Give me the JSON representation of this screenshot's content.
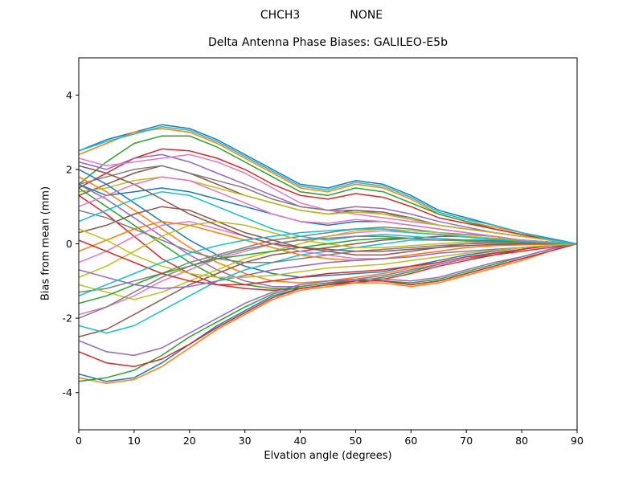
{
  "header": {
    "left_title": "CHCH3",
    "right_title": "NONE"
  },
  "chart_data": {
    "type": "line",
    "title": "Delta Antenna Phase Biases: GALILEO-E5b",
    "xlabel": "Elvation angle (degrees)",
    "ylabel": "Bias from mean (mm)",
    "xlim": [
      0,
      90
    ],
    "ylim": [
      -5,
      5
    ],
    "xticks": [
      0,
      10,
      20,
      30,
      40,
      50,
      60,
      70,
      80,
      90
    ],
    "yticks": [
      -4,
      -2,
      0,
      2,
      4
    ],
    "grid": false,
    "legend": "none",
    "palette": [
      "#1f77b4",
      "#ff7f0e",
      "#2ca02c",
      "#d62728",
      "#9467bd",
      "#8c564b",
      "#e377c2",
      "#7f7f7f",
      "#bcbd22",
      "#17becf"
    ],
    "x": [
      0,
      5,
      10,
      15,
      20,
      25,
      30,
      35,
      40,
      45,
      50,
      55,
      60,
      65,
      70,
      75,
      80,
      85,
      90
    ],
    "series": [
      {
        "values": [
          2.5,
          2.8,
          3.0,
          3.2,
          3.1,
          2.8,
          2.4,
          2.0,
          1.6,
          1.5,
          1.7,
          1.6,
          1.3,
          0.9,
          0.7,
          0.5,
          0.3,
          0.15,
          0
        ]
      },
      {
        "values": [
          2.4,
          2.7,
          3.0,
          3.1,
          3.0,
          2.7,
          2.3,
          1.9,
          1.5,
          1.4,
          1.6,
          1.5,
          1.2,
          0.8,
          0.6,
          0.45,
          0.3,
          0.1,
          0
        ]
      },
      {
        "values": [
          1.6,
          2.2,
          2.7,
          2.9,
          2.9,
          2.6,
          2.2,
          1.8,
          1.4,
          1.3,
          1.5,
          1.4,
          1.1,
          0.8,
          0.6,
          0.4,
          0.25,
          0.1,
          0
        ]
      },
      {
        "values": [
          1.5,
          1.9,
          2.3,
          2.55,
          2.5,
          2.3,
          2.0,
          1.6,
          1.3,
          1.2,
          1.35,
          1.25,
          1.0,
          0.7,
          0.55,
          0.4,
          0.25,
          0.1,
          0
        ]
      },
      {
        "values": [
          2.2,
          2.0,
          2.3,
          2.4,
          2.2,
          1.9,
          1.6,
          1.3,
          1.0,
          0.9,
          1.0,
          0.95,
          0.8,
          0.6,
          0.45,
          0.3,
          0.2,
          0.1,
          0
        ]
      },
      {
        "values": [
          1.3,
          1.6,
          1.9,
          2.1,
          1.9,
          1.6,
          1.3,
          1.1,
          0.9,
          0.8,
          0.9,
          0.85,
          0.7,
          0.5,
          0.4,
          0.3,
          0.2,
          0.1,
          0
        ]
      },
      {
        "values": [
          2.3,
          2.1,
          2.2,
          2.3,
          2.4,
          2.2,
          1.9,
          1.5,
          1.1,
          0.9,
          0.8,
          0.7,
          0.6,
          0.5,
          0.4,
          0.3,
          0.2,
          0.1,
          0
        ]
      },
      {
        "values": [
          1.6,
          1.8,
          2.0,
          2.1,
          1.9,
          1.7,
          1.5,
          1.2,
          1.0,
          0.9,
          0.9,
          0.8,
          0.7,
          0.5,
          0.4,
          0.3,
          0.2,
          0.1,
          0
        ]
      },
      {
        "values": [
          1.4,
          1.5,
          1.7,
          1.8,
          1.7,
          1.5,
          1.3,
          1.1,
          0.9,
          0.8,
          0.85,
          0.8,
          0.65,
          0.5,
          0.4,
          0.3,
          0.2,
          0.1,
          0
        ]
      },
      {
        "values": [
          2.5,
          2.75,
          2.95,
          3.15,
          3.05,
          2.75,
          2.35,
          1.95,
          1.55,
          1.45,
          1.65,
          1.55,
          1.25,
          0.85,
          0.65,
          0.5,
          0.3,
          0.12,
          0
        ]
      },
      {
        "values": [
          2.0,
          1.6,
          1.1,
          0.6,
          0.1,
          -0.3,
          -0.6,
          -0.8,
          -0.9,
          -0.85,
          -0.8,
          -0.75,
          -0.6,
          -0.45,
          -0.3,
          -0.2,
          -0.1,
          -0.05,
          0
        ]
      },
      {
        "values": [
          1.8,
          1.4,
          0.9,
          0.4,
          -0.1,
          -0.5,
          -0.8,
          -1.0,
          -1.05,
          -1.0,
          -0.9,
          -0.8,
          -0.65,
          -0.5,
          -0.35,
          -0.25,
          -0.15,
          -0.05,
          0
        ]
      },
      {
        "values": [
          1.5,
          1.0,
          0.5,
          0.0,
          -0.5,
          -0.9,
          -1.1,
          -1.2,
          -1.2,
          -1.1,
          -1.0,
          -0.9,
          -0.75,
          -0.55,
          -0.4,
          -0.3,
          -0.15,
          -0.05,
          0
        ]
      },
      {
        "values": [
          1.3,
          0.8,
          0.2,
          -0.4,
          -0.8,
          -1.1,
          -1.2,
          -1.25,
          -1.2,
          -1.1,
          -1.05,
          -0.95,
          -0.8,
          -0.6,
          -0.45,
          -0.3,
          -0.2,
          -0.1,
          0
        ]
      },
      {
        "values": [
          1.6,
          1.2,
          0.7,
          0.2,
          -0.3,
          -0.7,
          -1.0,
          -1.15,
          -1.15,
          -1.05,
          -0.95,
          -0.85,
          -0.7,
          -0.55,
          -0.4,
          -0.25,
          -0.15,
          -0.05,
          0
        ]
      },
      {
        "values": [
          -2.5,
          -2.3,
          -1.9,
          -1.5,
          -1.1,
          -0.8,
          -0.5,
          -0.3,
          -0.2,
          -0.1,
          0.0,
          0.1,
          0.15,
          0.2,
          0.2,
          0.15,
          0.1,
          0.05,
          0
        ]
      },
      {
        "values": [
          -1.9,
          -1.7,
          -1.4,
          -1.0,
          -0.7,
          -0.4,
          -0.2,
          0.0,
          0.1,
          0.2,
          0.3,
          0.35,
          0.3,
          0.25,
          0.2,
          0.15,
          0.1,
          0.05,
          0
        ]
      },
      {
        "values": [
          -1.3,
          -1.2,
          -1.0,
          -0.8,
          -0.5,
          -0.3,
          -0.1,
          0.1,
          0.2,
          0.3,
          0.4,
          0.45,
          0.4,
          0.3,
          0.25,
          0.2,
          0.1,
          0.05,
          0
        ]
      },
      {
        "values": [
          -1.1,
          -1.3,
          -1.5,
          -1.3,
          -1.0,
          -0.7,
          -0.4,
          -0.2,
          0.0,
          0.2,
          0.35,
          0.4,
          0.35,
          0.3,
          0.2,
          0.15,
          0.1,
          0.05,
          0
        ]
      },
      {
        "values": [
          -2.2,
          -2.4,
          -2.2,
          -1.8,
          -1.4,
          -1.0,
          -0.7,
          -0.5,
          -0.3,
          -0.2,
          -0.1,
          0.0,
          0.1,
          0.1,
          0.1,
          0.1,
          0.05,
          0.02,
          0
        ]
      },
      {
        "values": [
          -3.5,
          -3.7,
          -3.6,
          -3.2,
          -2.7,
          -2.2,
          -1.8,
          -1.4,
          -1.2,
          -1.1,
          -1.0,
          -1.0,
          -1.1,
          -1.0,
          -0.8,
          -0.6,
          -0.4,
          -0.2,
          0
        ]
      },
      {
        "values": [
          -3.6,
          -3.75,
          -3.65,
          -3.3,
          -2.8,
          -2.3,
          -1.9,
          -1.5,
          -1.25,
          -1.15,
          -1.05,
          -1.05,
          -1.15,
          -1.05,
          -0.85,
          -0.65,
          -0.45,
          -0.2,
          0
        ]
      },
      {
        "values": [
          -3.7,
          -3.6,
          -3.4,
          -3.0,
          -2.5,
          -2.1,
          -1.7,
          -1.35,
          -1.15,
          -1.05,
          -1.0,
          -1.0,
          -1.05,
          -0.95,
          -0.75,
          -0.55,
          -0.35,
          -0.15,
          0
        ]
      },
      {
        "values": [
          -2.9,
          -3.2,
          -3.3,
          -3.1,
          -2.7,
          -2.25,
          -1.85,
          -1.45,
          -1.2,
          -1.1,
          -1.0,
          -1.0,
          -1.1,
          -1.0,
          -0.8,
          -0.6,
          -0.4,
          -0.2,
          0
        ]
      },
      {
        "values": [
          -2.6,
          -2.9,
          -3.0,
          -2.8,
          -2.4,
          -2.0,
          -1.6,
          -1.3,
          -1.1,
          -1.0,
          -0.95,
          -0.95,
          -1.0,
          -0.9,
          -0.7,
          -0.5,
          -0.35,
          -0.15,
          0
        ]
      },
      {
        "values": [
          0.3,
          0.5,
          0.8,
          1.0,
          0.9,
          0.6,
          0.3,
          0.1,
          -0.1,
          -0.2,
          -0.3,
          -0.3,
          -0.2,
          -0.1,
          0.0,
          0.05,
          0.05,
          0.02,
          0
        ]
      },
      {
        "values": [
          -0.5,
          -0.2,
          0.2,
          0.5,
          0.6,
          0.4,
          0.2,
          0.0,
          -0.2,
          -0.3,
          -0.4,
          -0.4,
          -0.3,
          -0.2,
          -0.1,
          -0.05,
          -0.02,
          -0.01,
          0
        ]
      },
      {
        "values": [
          0.9,
          0.7,
          0.4,
          0.1,
          -0.2,
          -0.4,
          -0.5,
          -0.5,
          -0.4,
          -0.3,
          -0.2,
          -0.15,
          -0.1,
          -0.05,
          0.0,
          0.02,
          0.02,
          0.01,
          0
        ]
      },
      {
        "values": [
          -0.9,
          -0.6,
          -0.2,
          0.2,
          0.5,
          0.6,
          0.5,
          0.3,
          0.1,
          0.0,
          -0.1,
          -0.1,
          -0.05,
          0.0,
          0.05,
          0.05,
          0.03,
          0.01,
          0
        ]
      },
      {
        "values": [
          0.6,
          0.9,
          1.2,
          1.4,
          1.3,
          1.0,
          0.7,
          0.4,
          0.2,
          0.1,
          0.2,
          0.25,
          0.2,
          0.15,
          0.1,
          0.08,
          0.05,
          0.02,
          0
        ]
      },
      {
        "values": [
          1.6,
          1.3,
          1.4,
          1.5,
          1.4,
          1.2,
          1.0,
          0.8,
          0.6,
          0.5,
          0.6,
          0.6,
          0.5,
          0.4,
          0.3,
          0.2,
          0.1,
          0.05,
          0
        ]
      },
      {
        "values": [
          -0.2,
          0.1,
          0.4,
          0.6,
          0.5,
          0.3,
          0.1,
          -0.1,
          -0.3,
          -0.4,
          -0.45,
          -0.4,
          -0.3,
          -0.2,
          -0.1,
          -0.05,
          -0.03,
          -0.01,
          0
        ]
      },
      {
        "values": [
          -1.6,
          -1.4,
          -1.1,
          -0.8,
          -0.6,
          -0.4,
          -0.3,
          -0.2,
          -0.1,
          0.0,
          0.1,
          0.15,
          0.15,
          0.1,
          0.1,
          0.08,
          0.05,
          0.02,
          0
        ]
      },
      {
        "values": [
          0.1,
          -0.2,
          -0.5,
          -0.8,
          -1.0,
          -1.1,
          -1.1,
          -1.0,
          -0.9,
          -0.8,
          -0.75,
          -0.7,
          -0.6,
          -0.5,
          -0.35,
          -0.25,
          -0.15,
          -0.05,
          0
        ]
      },
      {
        "values": [
          -0.7,
          -0.9,
          -1.1,
          -1.2,
          -1.15,
          -1.0,
          -0.85,
          -0.7,
          -0.6,
          -0.5,
          -0.45,
          -0.4,
          -0.35,
          -0.25,
          -0.2,
          -0.15,
          -0.1,
          -0.05,
          0
        ]
      },
      {
        "values": [
          2.1,
          1.9,
          1.6,
          1.2,
          0.8,
          0.5,
          0.2,
          0.0,
          -0.1,
          -0.15,
          -0.2,
          -0.2,
          -0.15,
          -0.1,
          -0.05,
          -0.02,
          0.0,
          0.0,
          0
        ]
      },
      {
        "values": [
          1.0,
          1.3,
          1.6,
          1.8,
          1.7,
          1.4,
          1.1,
          0.8,
          0.6,
          0.55,
          0.65,
          0.6,
          0.5,
          0.4,
          0.3,
          0.2,
          0.1,
          0.05,
          0
        ]
      },
      {
        "values": [
          -2.0,
          -1.7,
          -1.3,
          -0.9,
          -0.6,
          -0.35,
          -0.15,
          0.0,
          0.1,
          0.15,
          0.2,
          0.2,
          0.15,
          0.1,
          0.08,
          0.05,
          0.03,
          0.01,
          0
        ]
      },
      {
        "values": [
          0.4,
          0.1,
          -0.3,
          -0.6,
          -0.8,
          -0.9,
          -0.9,
          -0.85,
          -0.75,
          -0.65,
          -0.6,
          -0.55,
          -0.45,
          -0.35,
          -0.25,
          -0.18,
          -0.1,
          -0.04,
          0
        ]
      },
      {
        "values": [
          -1.4,
          -1.1,
          -0.8,
          -0.5,
          -0.25,
          -0.05,
          0.1,
          0.2,
          0.3,
          0.35,
          0.4,
          0.4,
          0.3,
          0.25,
          0.18,
          0.12,
          0.07,
          0.03,
          0
        ]
      }
    ]
  }
}
